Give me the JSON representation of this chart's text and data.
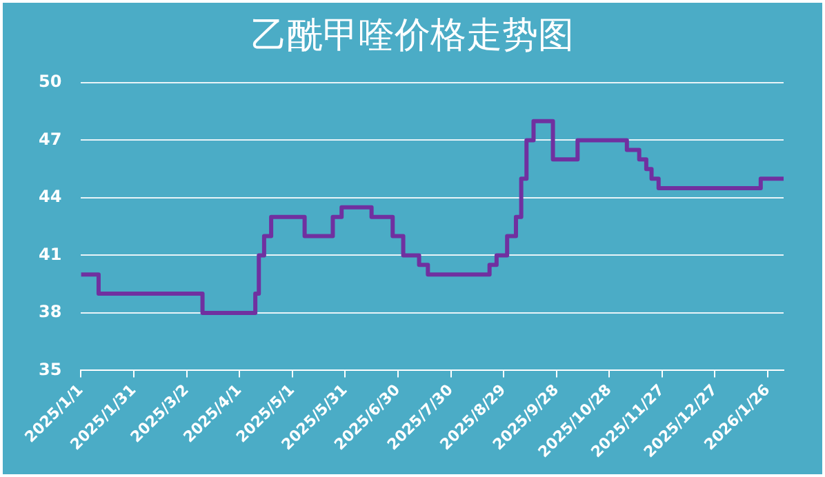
{
  "chart_data": {
    "type": "step",
    "title": "乙酰甲喹价格走势图",
    "x": [
      "2025-01-01",
      "2025-01-11",
      "2025-03-11",
      "2025-04-10",
      "2025-04-12",
      "2025-04-15",
      "2025-04-19",
      "2025-05-08",
      "2025-05-24",
      "2025-05-29",
      "2025-06-15",
      "2025-06-27",
      "2025-07-03",
      "2025-07-12",
      "2025-07-17",
      "2025-08-21",
      "2025-08-25",
      "2025-08-31",
      "2025-09-05",
      "2025-09-08",
      "2025-09-11",
      "2025-09-15",
      "2025-09-26",
      "2025-10-10",
      "2025-11-07",
      "2025-11-14",
      "2025-11-18",
      "2025-11-21",
      "2025-11-25",
      "2026-01-22",
      "2026-02-04"
    ],
    "series": [
      {
        "color": "#7030a0",
        "values": [
          40,
          39,
          38,
          39,
          41,
          42,
          43,
          42,
          43,
          43.5,
          43,
          42,
          41,
          40.5,
          40,
          40.5,
          41,
          42,
          43,
          45,
          47,
          48,
          46,
          47,
          46.5,
          46,
          45.5,
          45,
          44.5,
          45,
          45
        ]
      }
    ],
    "xlim": [
      "2025-01-01",
      "2026-02-04"
    ],
    "xticks": [
      {
        "value": "2025-01-01",
        "label": "2025/1/1"
      },
      {
        "value": "2025-01-31",
        "label": "2025/1/31"
      },
      {
        "value": "2025-03-02",
        "label": "2025/3/2"
      },
      {
        "value": "2025-04-01",
        "label": "2025/4/1"
      },
      {
        "value": "2025-05-01",
        "label": "2025/5/1"
      },
      {
        "value": "2025-05-31",
        "label": "2025/5/31"
      },
      {
        "value": "2025-06-30",
        "label": "2025/6/30"
      },
      {
        "value": "2025-07-30",
        "label": "2025/7/30"
      },
      {
        "value": "2025-08-29",
        "label": "2025/8/29"
      },
      {
        "value": "2025-09-28",
        "label": "2025/9/28"
      },
      {
        "value": "2025-10-28",
        "label": "2025/10/28"
      },
      {
        "value": "2025-11-27",
        "label": "2025/11/27"
      },
      {
        "value": "2025-12-27",
        "label": "2025/12/27"
      },
      {
        "value": "2026-01-26",
        "label": "2026/1/26"
      }
    ],
    "ylim": [
      35,
      50
    ],
    "yticks": [
      35,
      38,
      41,
      44,
      47,
      50
    ],
    "grid": "y",
    "legend": false,
    "marker": "none",
    "line_style": "solid"
  }
}
